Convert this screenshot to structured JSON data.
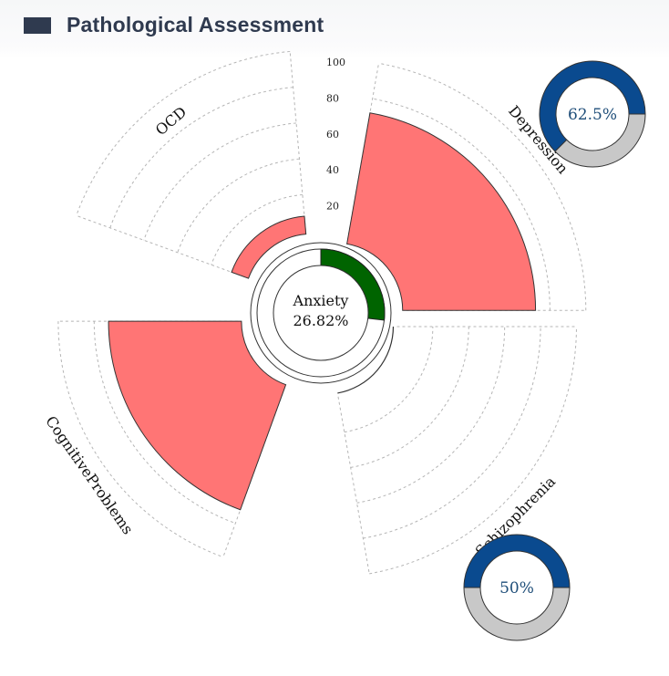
{
  "header": {
    "title": "Pathological Assessment"
  },
  "colors": {
    "header_marker": "#2f3a4f",
    "sector_fill": "#ff7575",
    "anxiety_fill": "#006400",
    "donut_primary": "#0a4a8f",
    "donut_secondary": "#c8c8c8",
    "donut_text": "#1f4e79"
  },
  "chart_data": {
    "type": "polar-bar",
    "radial_axis": {
      "range": [
        0,
        100
      ],
      "ticks": [
        20,
        40,
        60,
        80,
        100
      ],
      "tick_labels": [
        "20",
        "40",
        "60",
        "80",
        "100"
      ]
    },
    "categories": [
      "Depression",
      "Schizophrenia",
      "CognitiveProblems",
      "OCD"
    ],
    "values": [
      72,
      0,
      72,
      8
    ],
    "center": {
      "label": "Anxiety",
      "value_text": "26.82%",
      "percent": 26.82
    },
    "donuts": [
      {
        "category": "Depression",
        "label": "62.5%",
        "percent": 62.5
      },
      {
        "category": "Schizophrenia",
        "label": "50%",
        "percent": 50
      }
    ]
  }
}
